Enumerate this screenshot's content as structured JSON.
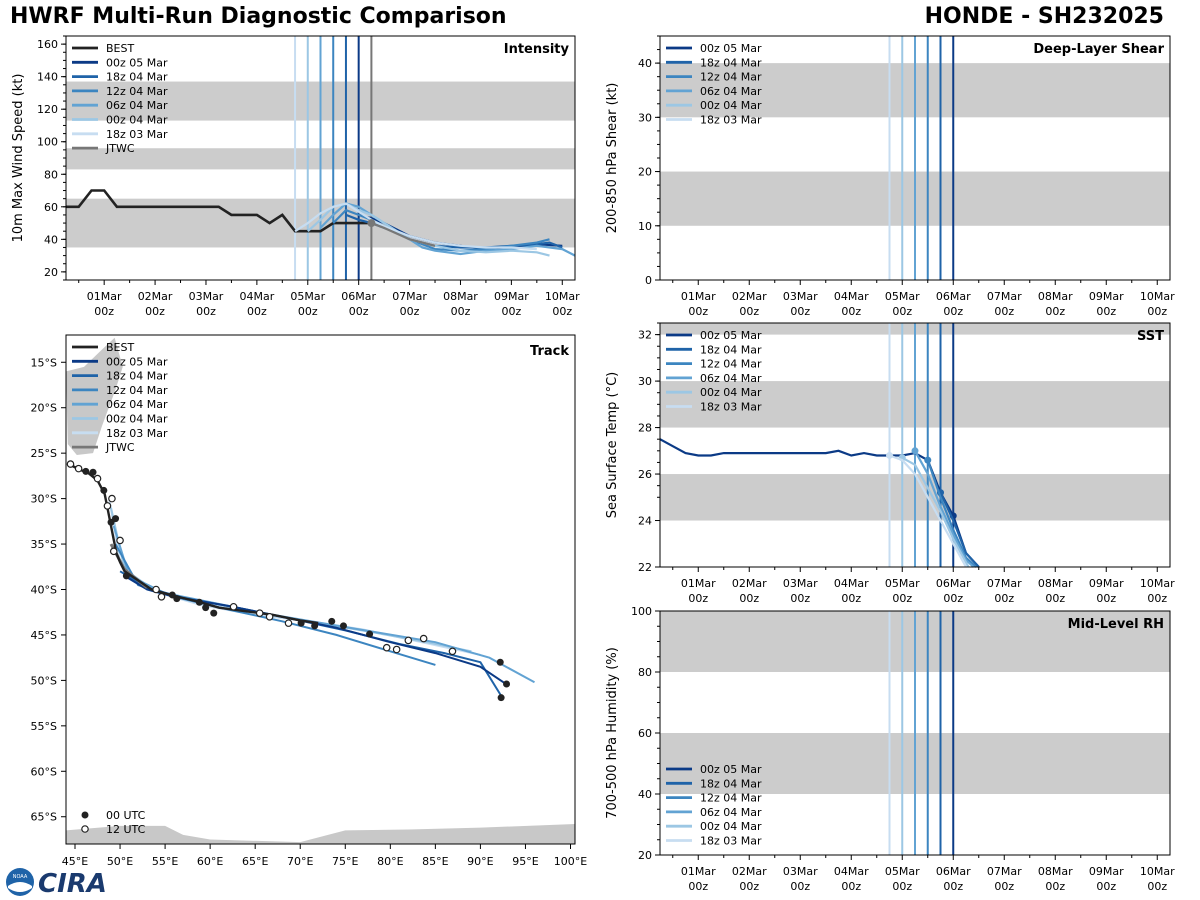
{
  "header": {
    "title_left": "HWRF Multi-Run Diagnostic Comparison",
    "title_right": "HONDE - SH232025"
  },
  "logo": {
    "text": "CIRA",
    "badge": "NOAA"
  },
  "colors": {
    "best": "#222222",
    "jtwc": "#777777",
    "runs": [
      "#0b3a86",
      "#1f63a8",
      "#3c85c0",
      "#62a3d3",
      "#9cc7e4",
      "#c7ddf1"
    ],
    "band": "#cccccc",
    "land": "#c8c8c8"
  },
  "time_axis": {
    "tick_labels": [
      [
        "01Mar",
        "00z"
      ],
      [
        "02Mar",
        "00z"
      ],
      [
        "03Mar",
        "00z"
      ],
      [
        "04Mar",
        "00z"
      ],
      [
        "05Mar",
        "00z"
      ],
      [
        "06Mar",
        "00z"
      ],
      [
        "07Mar",
        "00z"
      ],
      [
        "08Mar",
        "00z"
      ],
      [
        "09Mar",
        "00z"
      ],
      [
        "10Mar",
        "00z"
      ]
    ]
  },
  "run_labels": [
    "00z 05 Mar",
    "18z 04 Mar",
    "12z 04 Mar",
    "06z 04 Mar",
    "00z 04 Mar",
    "18z 03 Mar"
  ],
  "chart_data": [
    {
      "id": "intensity",
      "type": "line",
      "title": "Intensity",
      "ylabel": "10m Max Wind Speed (kt)",
      "xlim_days": [
        -0.75,
        9.25
      ],
      "ylim": [
        15,
        165
      ],
      "yticks": [
        20,
        40,
        60,
        80,
        100,
        120,
        140,
        160
      ],
      "bands": [
        [
          35,
          65
        ],
        [
          83,
          96
        ],
        [
          113,
          137
        ]
      ],
      "run_init_days": [
        3.75,
        4.0,
        4.25,
        4.5,
        4.75,
        5.0
      ],
      "jtwc_marker_day": 5.25,
      "legend": [
        "BEST",
        "00z 05 Mar",
        "18z 04 Mar",
        "12z 04 Mar",
        "06z 04 Mar",
        "00z 04 Mar",
        "18z 03 Mar",
        "JTWC"
      ],
      "series": [
        {
          "name": "BEST",
          "role": "best",
          "x": [
            -0.75,
            -0.5,
            -0.25,
            0,
            0.25,
            0.5,
            0.75,
            1,
            1.25,
            1.5,
            1.75,
            2,
            2.25,
            2.5,
            2.75,
            3,
            3.25,
            3.5,
            3.75,
            4,
            4.25,
            4.5,
            4.75,
            5,
            5.25
          ],
          "y": [
            60,
            60,
            70,
            70,
            60,
            60,
            60,
            60,
            60,
            60,
            60,
            60,
            60,
            55,
            55,
            55,
            50,
            55,
            45,
            45,
            45,
            50,
            50,
            50,
            50
          ]
        },
        {
          "name": "00z 05 Mar",
          "role": "run",
          "run": 0,
          "x": [
            5,
            5.25,
            5.5,
            5.75,
            6,
            6.5,
            7,
            7.5,
            8,
            8.5,
            9
          ],
          "y": [
            55,
            53,
            50,
            46,
            42,
            38,
            36,
            34,
            35,
            37,
            36
          ]
        },
        {
          "name": "18z 04 Mar",
          "role": "run",
          "run": 1,
          "x": [
            4.75,
            5,
            5.25,
            5.5,
            5.75,
            6,
            6.5,
            7,
            7.5,
            8,
            8.5,
            8.75,
            9
          ],
          "y": [
            55,
            52,
            50,
            47,
            44,
            40,
            36,
            35,
            35,
            36,
            37,
            38,
            35
          ]
        },
        {
          "name": "12z 04 Mar",
          "role": "run",
          "run": 2,
          "x": [
            4.5,
            4.75,
            5,
            5.25,
            5.5,
            5.75,
            6,
            6.5,
            7,
            7.5,
            8,
            8.5,
            8.75
          ],
          "y": [
            50,
            58,
            55,
            52,
            48,
            44,
            40,
            34,
            33,
            34,
            36,
            38,
            40
          ]
        },
        {
          "name": "06z 04 Mar",
          "role": "run",
          "run": 3,
          "x": [
            4.25,
            4.5,
            4.75,
            5,
            5.25,
            5.5,
            5.75,
            6,
            6.25,
            6.5,
            7,
            7.5,
            8,
            8.5,
            9,
            9.25
          ],
          "y": [
            47,
            55,
            62,
            60,
            55,
            50,
            45,
            40,
            35,
            33,
            31,
            33,
            34,
            36,
            34,
            30
          ]
        },
        {
          "name": "00z 04 Mar",
          "role": "run",
          "run": 4,
          "x": [
            4,
            4.25,
            4.5,
            4.75,
            5,
            5.25,
            5.5,
            5.75,
            6,
            6.5,
            7,
            7.5,
            8,
            8.5,
            8.75
          ],
          "y": [
            45,
            52,
            60,
            62,
            58,
            55,
            50,
            45,
            40,
            36,
            33,
            32,
            33,
            32,
            30
          ]
        },
        {
          "name": "18z 03 Mar",
          "role": "run",
          "run": 5,
          "x": [
            3.75,
            4,
            4.25,
            4.5,
            4.75,
            5,
            5.25,
            5.5,
            6,
            6.5,
            7,
            7.5,
            8,
            8.5
          ],
          "y": [
            45,
            50,
            56,
            60,
            62,
            57,
            52,
            48,
            42,
            38,
            36,
            35,
            35,
            34
          ]
        },
        {
          "name": "JTWC",
          "role": "jtwc",
          "x": [
            5.25,
            5.5,
            6,
            6.5
          ],
          "y": [
            50,
            47,
            40,
            36
          ]
        }
      ]
    },
    {
      "id": "shear",
      "type": "line",
      "title": "Deep-Layer Shear",
      "ylabel": "200-850 hPa Shear (kt)",
      "xlim_days": [
        -0.75,
        9.25
      ],
      "ylim": [
        0,
        45
      ],
      "yticks": [
        0,
        10,
        20,
        30,
        40
      ],
      "bands": [
        [
          10,
          20
        ],
        [
          30,
          40
        ]
      ],
      "run_init_days": [
        3.75,
        4.0,
        4.25,
        4.5,
        4.75,
        5.0
      ],
      "legend": [
        "00z 05 Mar",
        "18z 04 Mar",
        "12z 04 Mar",
        "06z 04 Mar",
        "00z 04 Mar",
        "18z 03 Mar"
      ],
      "series": []
    },
    {
      "id": "sst",
      "type": "line",
      "title": "SST",
      "ylabel": "Sea Surface Temp (°C)",
      "xlim_days": [
        -0.75,
        9.25
      ],
      "ylim": [
        22,
        32.5
      ],
      "yticks": [
        22,
        24,
        26,
        28,
        30,
        32
      ],
      "bands": [
        [
          24,
          26
        ],
        [
          28,
          30
        ],
        [
          32,
          32.5
        ]
      ],
      "run_init_days": [
        3.75,
        4.0,
        4.25,
        4.5,
        4.75,
        5.0
      ],
      "legend": [
        "00z 05 Mar",
        "18z 04 Mar",
        "12z 04 Mar",
        "06z 04 Mar",
        "00z 04 Mar",
        "18z 03 Mar"
      ],
      "series": [
        {
          "name": "00z 05 Mar",
          "role": "run",
          "run": 0,
          "dot_at_init": true,
          "x": [
            -0.75,
            -0.5,
            -0.25,
            0,
            0.25,
            0.5,
            0.75,
            1,
            1.25,
            1.5,
            1.75,
            2,
            2.25,
            2.5,
            2.75,
            3,
            3.25,
            3.5,
            3.75,
            4,
            4.25,
            4.5,
            4.75,
            5,
            5.25,
            5.5
          ],
          "y": [
            27.5,
            27.2,
            26.9,
            26.8,
            26.8,
            26.9,
            26.9,
            26.9,
            26.9,
            26.9,
            26.9,
            26.9,
            26.9,
            26.9,
            27.0,
            26.8,
            26.9,
            26.8,
            26.8,
            26.8,
            26.9,
            26.6,
            25.2,
            24.2,
            22.6,
            22.0
          ]
        },
        {
          "name": "18z 04 Mar",
          "role": "run",
          "run": 1,
          "dot_at_init": true,
          "x": [
            4.75,
            5,
            5.25,
            5.5
          ],
          "y": [
            25.2,
            24.0,
            22.6,
            22.0
          ]
        },
        {
          "name": "12z 04 Mar",
          "role": "run",
          "run": 2,
          "dot_at_init": true,
          "x": [
            4.5,
            4.75,
            5,
            5.25,
            5.45
          ],
          "y": [
            26.6,
            25.0,
            23.6,
            22.4,
            22.0
          ]
        },
        {
          "name": "06z 04 Mar",
          "role": "run",
          "run": 3,
          "dot_at_init": true,
          "x": [
            4.25,
            4.5,
            4.75,
            5,
            5.25,
            5.4
          ],
          "y": [
            27.0,
            26.0,
            24.6,
            23.4,
            22.3,
            22.0
          ]
        },
        {
          "name": "00z 04 Mar",
          "role": "run",
          "run": 4,
          "dot_at_init": true,
          "x": [
            4,
            4.25,
            4.5,
            4.75,
            5,
            5.3
          ],
          "y": [
            26.7,
            26.4,
            25.4,
            24.4,
            23.2,
            22.0
          ]
        },
        {
          "name": "18z 03 Mar",
          "role": "run",
          "run": 5,
          "dot_at_init": true,
          "x": [
            3.75,
            4,
            4.25,
            4.5,
            4.75,
            5,
            5.25
          ],
          "y": [
            26.8,
            26.6,
            26.0,
            25.0,
            24.0,
            23.0,
            22.0
          ]
        }
      ]
    },
    {
      "id": "rh",
      "type": "line",
      "title": "Mid-Level RH",
      "ylabel": "700-500 hPa Humidity (%)",
      "xlim_days": [
        -0.75,
        9.25
      ],
      "ylim": [
        20,
        100
      ],
      "yticks": [
        20,
        40,
        60,
        80,
        100
      ],
      "bands": [
        [
          40,
          60
        ],
        [
          80,
          100
        ]
      ],
      "run_init_days": [
        3.75,
        4.0,
        4.25,
        4.5,
        4.75,
        5.0
      ],
      "legend": [
        "00z 05 Mar",
        "18z 04 Mar",
        "12z 04 Mar",
        "06z 04 Mar",
        "00z 04 Mar",
        "18z 03 Mar"
      ],
      "series": []
    },
    {
      "id": "track",
      "type": "scatter",
      "title": "Track",
      "xlim_lon": [
        44,
        100.5
      ],
      "ylim_lat": [
        -68,
        -12
      ],
      "xticks": [
        45,
        50,
        55,
        60,
        65,
        70,
        75,
        80,
        85,
        90,
        95,
        100
      ],
      "xtick_labels": [
        "45°E",
        "50°E",
        "55°E",
        "60°E",
        "65°E",
        "70°E",
        "75°E",
        "80°E",
        "85°E",
        "90°E",
        "95°E",
        "100°E"
      ],
      "yticks": [
        -15,
        -20,
        -25,
        -30,
        -35,
        -40,
        -45,
        -50,
        -55,
        -60,
        -65
      ],
      "ytick_labels": [
        "15°S",
        "20°S",
        "25°S",
        "30°S",
        "35°S",
        "40°S",
        "45°S",
        "50°S",
        "55°S",
        "60°S",
        "65°S"
      ],
      "legend": [
        "BEST",
        "00z 05 Mar",
        "18z 04 Mar",
        "12z 04 Mar",
        "06z 04 Mar",
        "00z 04 Mar",
        "18z 03 Mar",
        "JTWC"
      ],
      "marker_legend": [
        "00 UTC",
        "12 UTC"
      ],
      "best": {
        "lon": [
          44.5,
          45.5,
          46.5,
          47.5,
          48.3,
          48.7,
          49.0,
          49.3,
          49.6,
          50.0,
          50.5,
          52.0,
          53.5,
          56.0,
          58.5,
          61.0,
          64.0,
          67.0,
          70.0,
          72.0
        ],
        "lat": [
          -26.3,
          -26.8,
          -27.2,
          -28.0,
          -29.5,
          -31.5,
          -33.0,
          -34.5,
          -36.0,
          -37.0,
          -38.0,
          -39.0,
          -40.0,
          -40.7,
          -41.3,
          -42.0,
          -42.4,
          -42.8,
          -43.4,
          -43.7
        ]
      },
      "best_00utc": [
        [
          46.2,
          -27.0
        ],
        [
          47.0,
          -27.1
        ],
        [
          48.2,
          -29.1
        ],
        [
          49.0,
          -32.6
        ],
        [
          49.5,
          -32.2
        ],
        [
          50.7,
          -38.5
        ],
        [
          55.8,
          -40.6
        ],
        [
          56.3,
          -41.0
        ],
        [
          58.8,
          -41.4
        ],
        [
          59.5,
          -42.0
        ],
        [
          60.4,
          -42.6
        ],
        [
          70.1,
          -43.7
        ],
        [
          71.6,
          -44.0
        ],
        [
          73.5,
          -43.5
        ],
        [
          74.8,
          -44.0
        ],
        [
          77.7,
          -44.9
        ],
        [
          92.2,
          -48.0
        ],
        [
          92.9,
          -50.4
        ],
        [
          92.3,
          -51.9
        ]
      ],
      "best_12utc": [
        [
          44.5,
          -26.2
        ],
        [
          45.4,
          -26.7
        ],
        [
          47.5,
          -27.8
        ],
        [
          48.6,
          -30.8
        ],
        [
          49.1,
          -30.0
        ],
        [
          49.3,
          -35.8
        ],
        [
          50.0,
          -34.6
        ],
        [
          54.0,
          -40.0
        ],
        [
          54.6,
          -40.8
        ],
        [
          62.6,
          -41.9
        ],
        [
          65.5,
          -42.6
        ],
        [
          66.6,
          -43.0
        ],
        [
          68.7,
          -43.7
        ],
        [
          79.6,
          -46.4
        ],
        [
          80.7,
          -46.6
        ],
        [
          82.0,
          -45.6
        ],
        [
          83.7,
          -45.4
        ],
        [
          86.9,
          -46.8
        ]
      ],
      "runs": [
        {
          "name": "00z 05 Mar",
          "run": 0,
          "lon": [
            50.5,
            53.0,
            56.0,
            62.0,
            68.0,
            74.0,
            80.0,
            85.0,
            90.0,
            93.0
          ],
          "lat": [
            -38.5,
            -40.0,
            -40.8,
            -41.8,
            -43.0,
            -44.2,
            -45.8,
            -47.0,
            -48.5,
            -50.5
          ]
        },
        {
          "name": "18z 04 Mar",
          "run": 1,
          "lon": [
            50.0,
            53.0,
            57.0,
            63.0,
            69.0,
            75.0,
            81.0,
            86.0,
            90.0,
            92.5
          ],
          "lat": [
            -38.0,
            -39.8,
            -40.9,
            -42.0,
            -43.2,
            -44.5,
            -46.0,
            -47.0,
            -48.0,
            -52.0
          ]
        },
        {
          "name": "12z 04 Mar",
          "run": 2,
          "lon": [
            49.5,
            52.0,
            56.0,
            62.0,
            68.0,
            74.0,
            80.0,
            85.0
          ],
          "lat": [
            -35.0,
            -39.5,
            -40.8,
            -42.2,
            -43.5,
            -45.0,
            -46.8,
            -48.3
          ]
        },
        {
          "name": "06z 04 Mar",
          "run": 3,
          "lon": [
            49.3,
            51.0,
            55.0,
            61.0,
            67.0,
            73.0,
            79.0,
            85.0,
            91.0,
            96.0
          ],
          "lat": [
            -33.0,
            -38.5,
            -40.4,
            -41.6,
            -42.8,
            -43.8,
            -44.8,
            -45.8,
            -47.5,
            -50.2
          ]
        },
        {
          "name": "00z 04 Mar",
          "run": 4,
          "lon": [
            49.0,
            50.5,
            54.0,
            60.0,
            66.0,
            72.0,
            78.0,
            84.0,
            89.0
          ],
          "lat": [
            -31.0,
            -37.8,
            -40.2,
            -41.5,
            -42.7,
            -43.7,
            -44.7,
            -45.8,
            -46.8
          ]
        },
        {
          "name": "18z 03 Mar",
          "run": 5,
          "lon": [
            48.8,
            50.0,
            53.0,
            59.0,
            65.0,
            71.0,
            77.0,
            83.0,
            90.0
          ],
          "lat": [
            -30.0,
            -37.0,
            -40.0,
            -41.7,
            -42.8,
            -43.5,
            -44.4,
            -45.7,
            -47.2
          ]
        }
      ],
      "jtwc": {
        "lon": [
          49.0,
          50.5,
          53.0
        ],
        "lat": [
          -35.0,
          -37.8,
          -39.8
        ]
      }
    }
  ]
}
